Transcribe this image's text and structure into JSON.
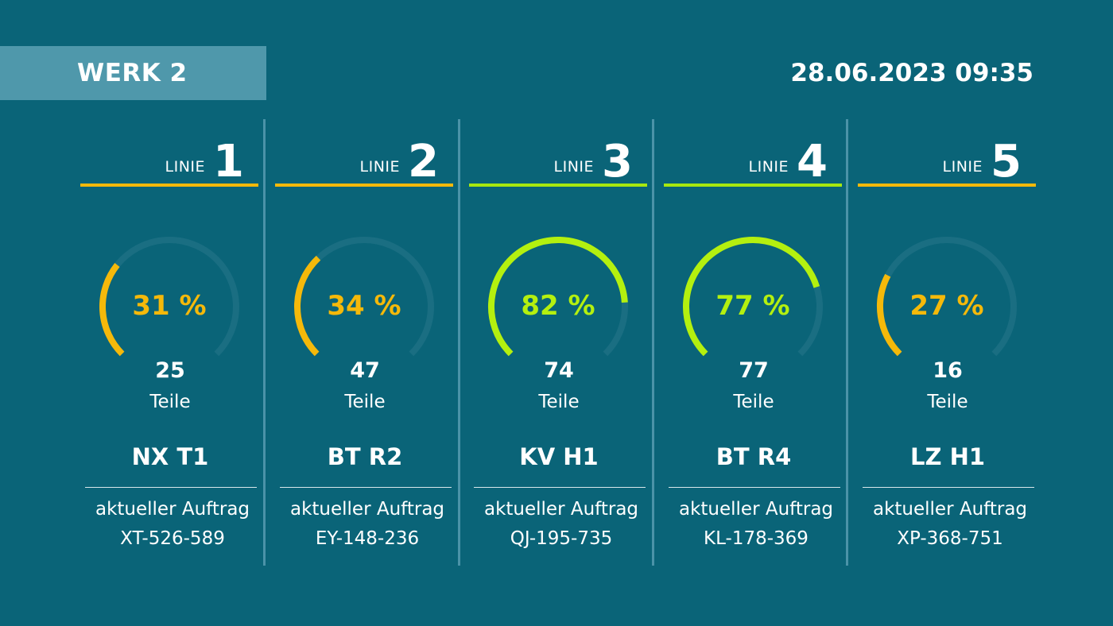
{
  "header": {
    "plant": "WERK 2",
    "datetime": "28.06.2023 09:35"
  },
  "colors": {
    "background": "#0a6478",
    "header_box": "#4f98ab",
    "track": "#1a6e82",
    "status_low": "#f5b90a",
    "status_high": "#b4f00f",
    "separator": "#4b93a8"
  },
  "lines": [
    {
      "label": "LINIE",
      "number": "1",
      "status": "low",
      "progress": "31 %",
      "progress_value": 0.31,
      "arc_fill": 0.2325,
      "parts": "25",
      "parts_label": "Teile",
      "product": "NX T1",
      "order_label": "aktueller Auftrag",
      "order_id": "XT-526-589"
    },
    {
      "label": "LINIE",
      "number": "2",
      "status": "low",
      "progress": "34 %",
      "progress_value": 0.34,
      "arc_fill": 0.255,
      "parts": "47",
      "parts_label": "Teile",
      "product": "BT R2",
      "order_label": "aktueller Auftrag",
      "order_id": "EY-148-236"
    },
    {
      "label": "LINIE",
      "number": "3",
      "status": "high",
      "progress": "82 %",
      "progress_value": 0.82,
      "arc_fill": 0.615,
      "parts": "74",
      "parts_label": "Teile",
      "product": "KV H1",
      "order_label": "aktueller Auftrag",
      "order_id": "QJ-195-735"
    },
    {
      "label": "LINIE",
      "number": "4",
      "status": "high",
      "progress": "77 %",
      "progress_value": 0.77,
      "arc_fill": 0.5775,
      "parts": "77",
      "parts_label": "Teile",
      "product": "BT R4",
      "order_label": "aktueller Auftrag",
      "order_id": "KL-178-369"
    },
    {
      "label": "LINIE",
      "number": "5",
      "status": "low",
      "progress": "27 %",
      "progress_value": 0.27,
      "arc_fill": 0.2025,
      "parts": "16",
      "parts_label": "Teile",
      "product": "LZ H1",
      "order_label": "aktueller Auftrag",
      "order_id": "XP-368-751"
    }
  ]
}
